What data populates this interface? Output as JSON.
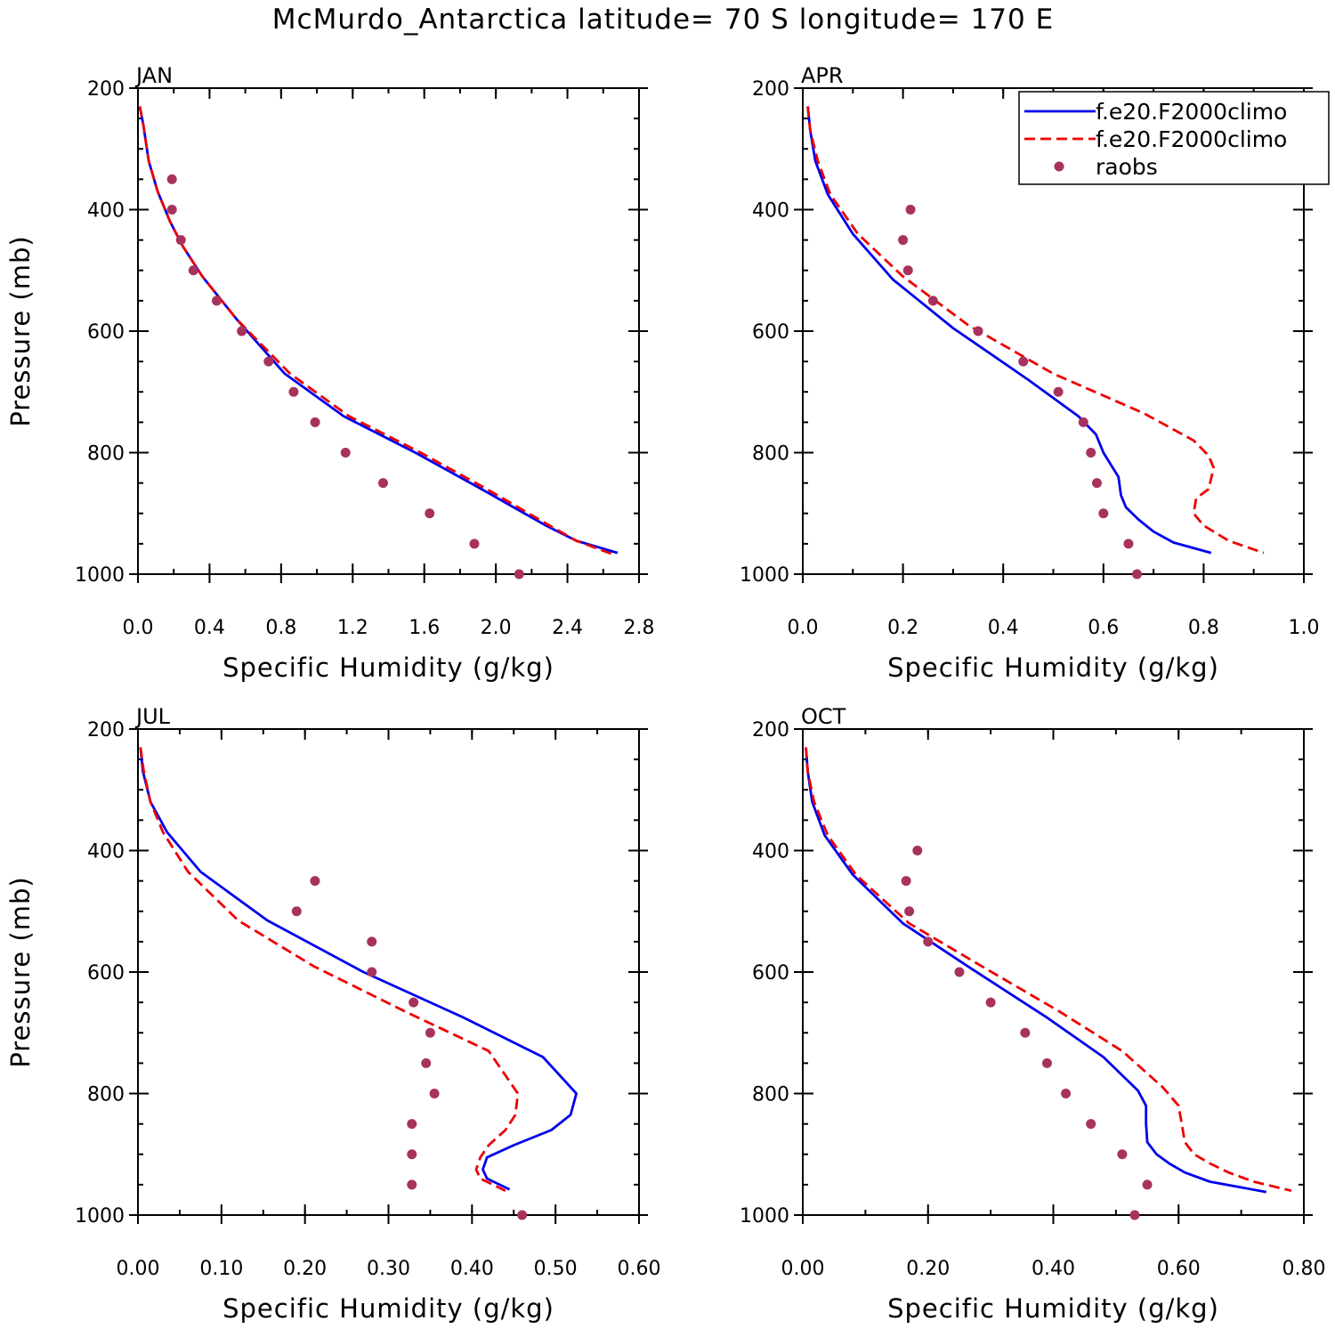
{
  "title": "McMurdo_Antarctica  latitude= 70 S longitude= 170 E",
  "colors": {
    "model1": "#0000ee",
    "model2": "#ee0000",
    "obs": "#a8325e"
  },
  "legend": {
    "placement": "top-right of APR panel",
    "entries": [
      {
        "label": "f.e20.F2000climo",
        "style": "solid",
        "color": "#0000ee"
      },
      {
        "label": "f.e20.F2000climo",
        "style": "dashed",
        "color": "#ee0000"
      },
      {
        "label": "raobs",
        "style": "marker",
        "color": "#a8325e"
      }
    ]
  },
  "chart_data": [
    {
      "type": "line",
      "panel": "JAN",
      "xlabel": "Specific Humidity (g/kg)",
      "ylabel": "Pressure (mb)",
      "xlim": [
        0,
        2.8
      ],
      "ylim": [
        200,
        1000
      ],
      "y_inverted": true,
      "xticks": [
        "0.0",
        "0.4",
        "0.8",
        "1.2",
        "1.6",
        "2.0",
        "2.4",
        "2.8"
      ],
      "xtick_values": [
        0,
        0.4,
        0.8,
        1.2,
        1.6,
        2.0,
        2.4,
        2.8
      ],
      "yticks": [
        "200",
        "400",
        "600",
        "800",
        "1000"
      ],
      "yminor": 50,
      "xminor_step": 0.2,
      "series": [
        {
          "label_index": 0,
          "style": "solid",
          "color": "#0000ee",
          "x": [
            0.01,
            0.03,
            0.06,
            0.11,
            0.18,
            0.25,
            0.36,
            0.55,
            0.82,
            1.15,
            1.55,
            1.92,
            2.28,
            2.45,
            2.68
          ],
          "y": [
            230,
            260,
            320,
            370,
            420,
            460,
            510,
            580,
            670,
            740,
            800,
            860,
            920,
            945,
            965
          ]
        },
        {
          "label_index": 1,
          "style": "dashed",
          "color": "#ee0000",
          "x": [
            0.01,
            0.03,
            0.06,
            0.11,
            0.18,
            0.25,
            0.36,
            0.55,
            0.85,
            1.18,
            1.58,
            1.95,
            2.3,
            2.45,
            2.66
          ],
          "y": [
            230,
            260,
            320,
            370,
            420,
            460,
            510,
            580,
            670,
            740,
            800,
            860,
            920,
            945,
            968
          ]
        },
        {
          "label_index": 2,
          "style": "marker",
          "color": "#a8325e",
          "x": [
            0.19,
            0.19,
            0.24,
            0.31,
            0.44,
            0.58,
            0.73,
            0.87,
            0.99,
            1.16,
            1.37,
            1.63,
            1.88,
            2.13
          ],
          "y": [
            350,
            400,
            450,
            500,
            550,
            600,
            650,
            700,
            750,
            800,
            850,
            900,
            950,
            1000
          ]
        }
      ]
    },
    {
      "type": "line",
      "panel": "APR",
      "xlabel": "Specific Humidity (g/kg)",
      "ylabel": "",
      "xlim": [
        0,
        1.0
      ],
      "ylim": [
        200,
        1000
      ],
      "y_inverted": true,
      "xticks": [
        "0.0",
        "0.2",
        "0.4",
        "0.6",
        "0.8",
        "1.0"
      ],
      "xtick_values": [
        0,
        0.2,
        0.4,
        0.6,
        0.8,
        1.0
      ],
      "yticks": [
        "200",
        "400",
        "600",
        "800",
        "1000"
      ],
      "yminor": 50,
      "xminor_step": 0.1,
      "series": [
        {
          "label_index": 0,
          "style": "solid",
          "color": "#0000ee",
          "x": [
            0.01,
            0.015,
            0.025,
            0.05,
            0.1,
            0.18,
            0.3,
            0.45,
            0.55,
            0.585,
            0.6,
            0.63,
            0.635,
            0.645,
            0.67,
            0.7,
            0.74,
            0.815
          ],
          "y": [
            230,
            270,
            320,
            375,
            440,
            515,
            595,
            680,
            740,
            770,
            800,
            840,
            870,
            890,
            910,
            930,
            948,
            965
          ]
        },
        {
          "label_index": 1,
          "style": "dashed",
          "color": "#ee0000",
          "x": [
            0.01,
            0.015,
            0.03,
            0.055,
            0.11,
            0.2,
            0.33,
            0.5,
            0.68,
            0.78,
            0.81,
            0.82,
            0.81,
            0.785,
            0.78,
            0.8,
            0.85,
            0.92
          ],
          "y": [
            230,
            270,
            320,
            375,
            440,
            510,
            590,
            670,
            735,
            780,
            805,
            825,
            860,
            875,
            900,
            920,
            945,
            965
          ]
        },
        {
          "label_index": 2,
          "style": "marker",
          "color": "#a8325e",
          "x": [
            0.215,
            0.2,
            0.21,
            0.26,
            0.35,
            0.44,
            0.51,
            0.56,
            0.575,
            0.587,
            0.6,
            0.65,
            0.667
          ],
          "y": [
            400,
            450,
            500,
            550,
            600,
            650,
            700,
            750,
            800,
            850,
            900,
            950,
            1000
          ]
        }
      ]
    },
    {
      "type": "line",
      "panel": "JUL",
      "xlabel": "Specific Humidity (g/kg)",
      "ylabel": "Pressure (mb)",
      "xlim": [
        0,
        0.6
      ],
      "ylim": [
        200,
        1000
      ],
      "y_inverted": true,
      "xticks": [
        "0.00",
        "0.10",
        "0.20",
        "0.30",
        "0.40",
        "0.50",
        "0.60"
      ],
      "xtick_values": [
        0,
        0.1,
        0.2,
        0.3,
        0.4,
        0.5,
        0.6
      ],
      "yticks": [
        "200",
        "400",
        "600",
        "800",
        "1000"
      ],
      "yminor": 50,
      "xminor_step": 0.05,
      "series": [
        {
          "label_index": 0,
          "style": "solid",
          "color": "#0000ee",
          "x": [
            0.003,
            0.006,
            0.015,
            0.035,
            0.075,
            0.155,
            0.27,
            0.39,
            0.485,
            0.525,
            0.518,
            0.495,
            0.45,
            0.418,
            0.413,
            0.418,
            0.445
          ],
          "y": [
            230,
            270,
            320,
            370,
            435,
            515,
            600,
            675,
            740,
            800,
            835,
            860,
            885,
            905,
            925,
            940,
            958
          ]
        },
        {
          "label_index": 1,
          "style": "dashed",
          "color": "#ee0000",
          "x": [
            0.003,
            0.007,
            0.015,
            0.03,
            0.06,
            0.12,
            0.21,
            0.32,
            0.42,
            0.455,
            0.452,
            0.44,
            0.42,
            0.41,
            0.405,
            0.41,
            0.44
          ],
          "y": [
            230,
            270,
            320,
            370,
            435,
            515,
            590,
            665,
            730,
            800,
            835,
            860,
            885,
            905,
            925,
            940,
            960
          ]
        },
        {
          "label_index": 2,
          "style": "marker",
          "color": "#a8325e",
          "x": [
            0.212,
            0.19,
            0.28,
            0.28,
            0.33,
            0.35,
            0.345,
            0.355,
            0.328,
            0.328,
            0.328,
            0.46
          ],
          "y": [
            450,
            500,
            550,
            600,
            650,
            700,
            750,
            800,
            850,
            900,
            950,
            1000
          ]
        }
      ]
    },
    {
      "type": "line",
      "panel": "OCT",
      "xlabel": "Specific Humidity (g/kg)",
      "ylabel": "",
      "xlim": [
        0,
        0.8
      ],
      "ylim": [
        200,
        1000
      ],
      "y_inverted": true,
      "xticks": [
        "0.00",
        "0.20",
        "0.40",
        "0.60",
        "0.80"
      ],
      "xtick_values": [
        0,
        0.2,
        0.4,
        0.6,
        0.8
      ],
      "yticks": [
        "200",
        "400",
        "600",
        "800",
        "1000"
      ],
      "yminor": 50,
      "xminor_step": 0.1,
      "series": [
        {
          "label_index": 0,
          "style": "solid",
          "color": "#0000ee",
          "x": [
            0.005,
            0.008,
            0.015,
            0.035,
            0.08,
            0.16,
            0.27,
            0.39,
            0.48,
            0.535,
            0.548,
            0.548,
            0.55,
            0.565,
            0.585,
            0.61,
            0.65,
            0.74
          ],
          "y": [
            230,
            270,
            320,
            375,
            440,
            520,
            595,
            675,
            740,
            795,
            820,
            850,
            880,
            900,
            915,
            930,
            945,
            962
          ]
        },
        {
          "label_index": 1,
          "style": "dashed",
          "color": "#ee0000",
          "x": [
            0.005,
            0.008,
            0.018,
            0.04,
            0.085,
            0.17,
            0.285,
            0.41,
            0.51,
            0.575,
            0.6,
            0.605,
            0.61,
            0.625,
            0.65,
            0.68,
            0.72,
            0.78
          ],
          "y": [
            230,
            270,
            320,
            375,
            440,
            520,
            590,
            665,
            730,
            790,
            820,
            850,
            880,
            900,
            915,
            930,
            945,
            960
          ]
        },
        {
          "label_index": 2,
          "style": "marker",
          "color": "#a8325e",
          "x": [
            0.183,
            0.165,
            0.17,
            0.2,
            0.25,
            0.3,
            0.355,
            0.39,
            0.42,
            0.46,
            0.51,
            0.55,
            0.53
          ],
          "y": [
            400,
            450,
            500,
            550,
            600,
            650,
            700,
            750,
            800,
            850,
            900,
            950,
            1000
          ]
        }
      ]
    }
  ]
}
